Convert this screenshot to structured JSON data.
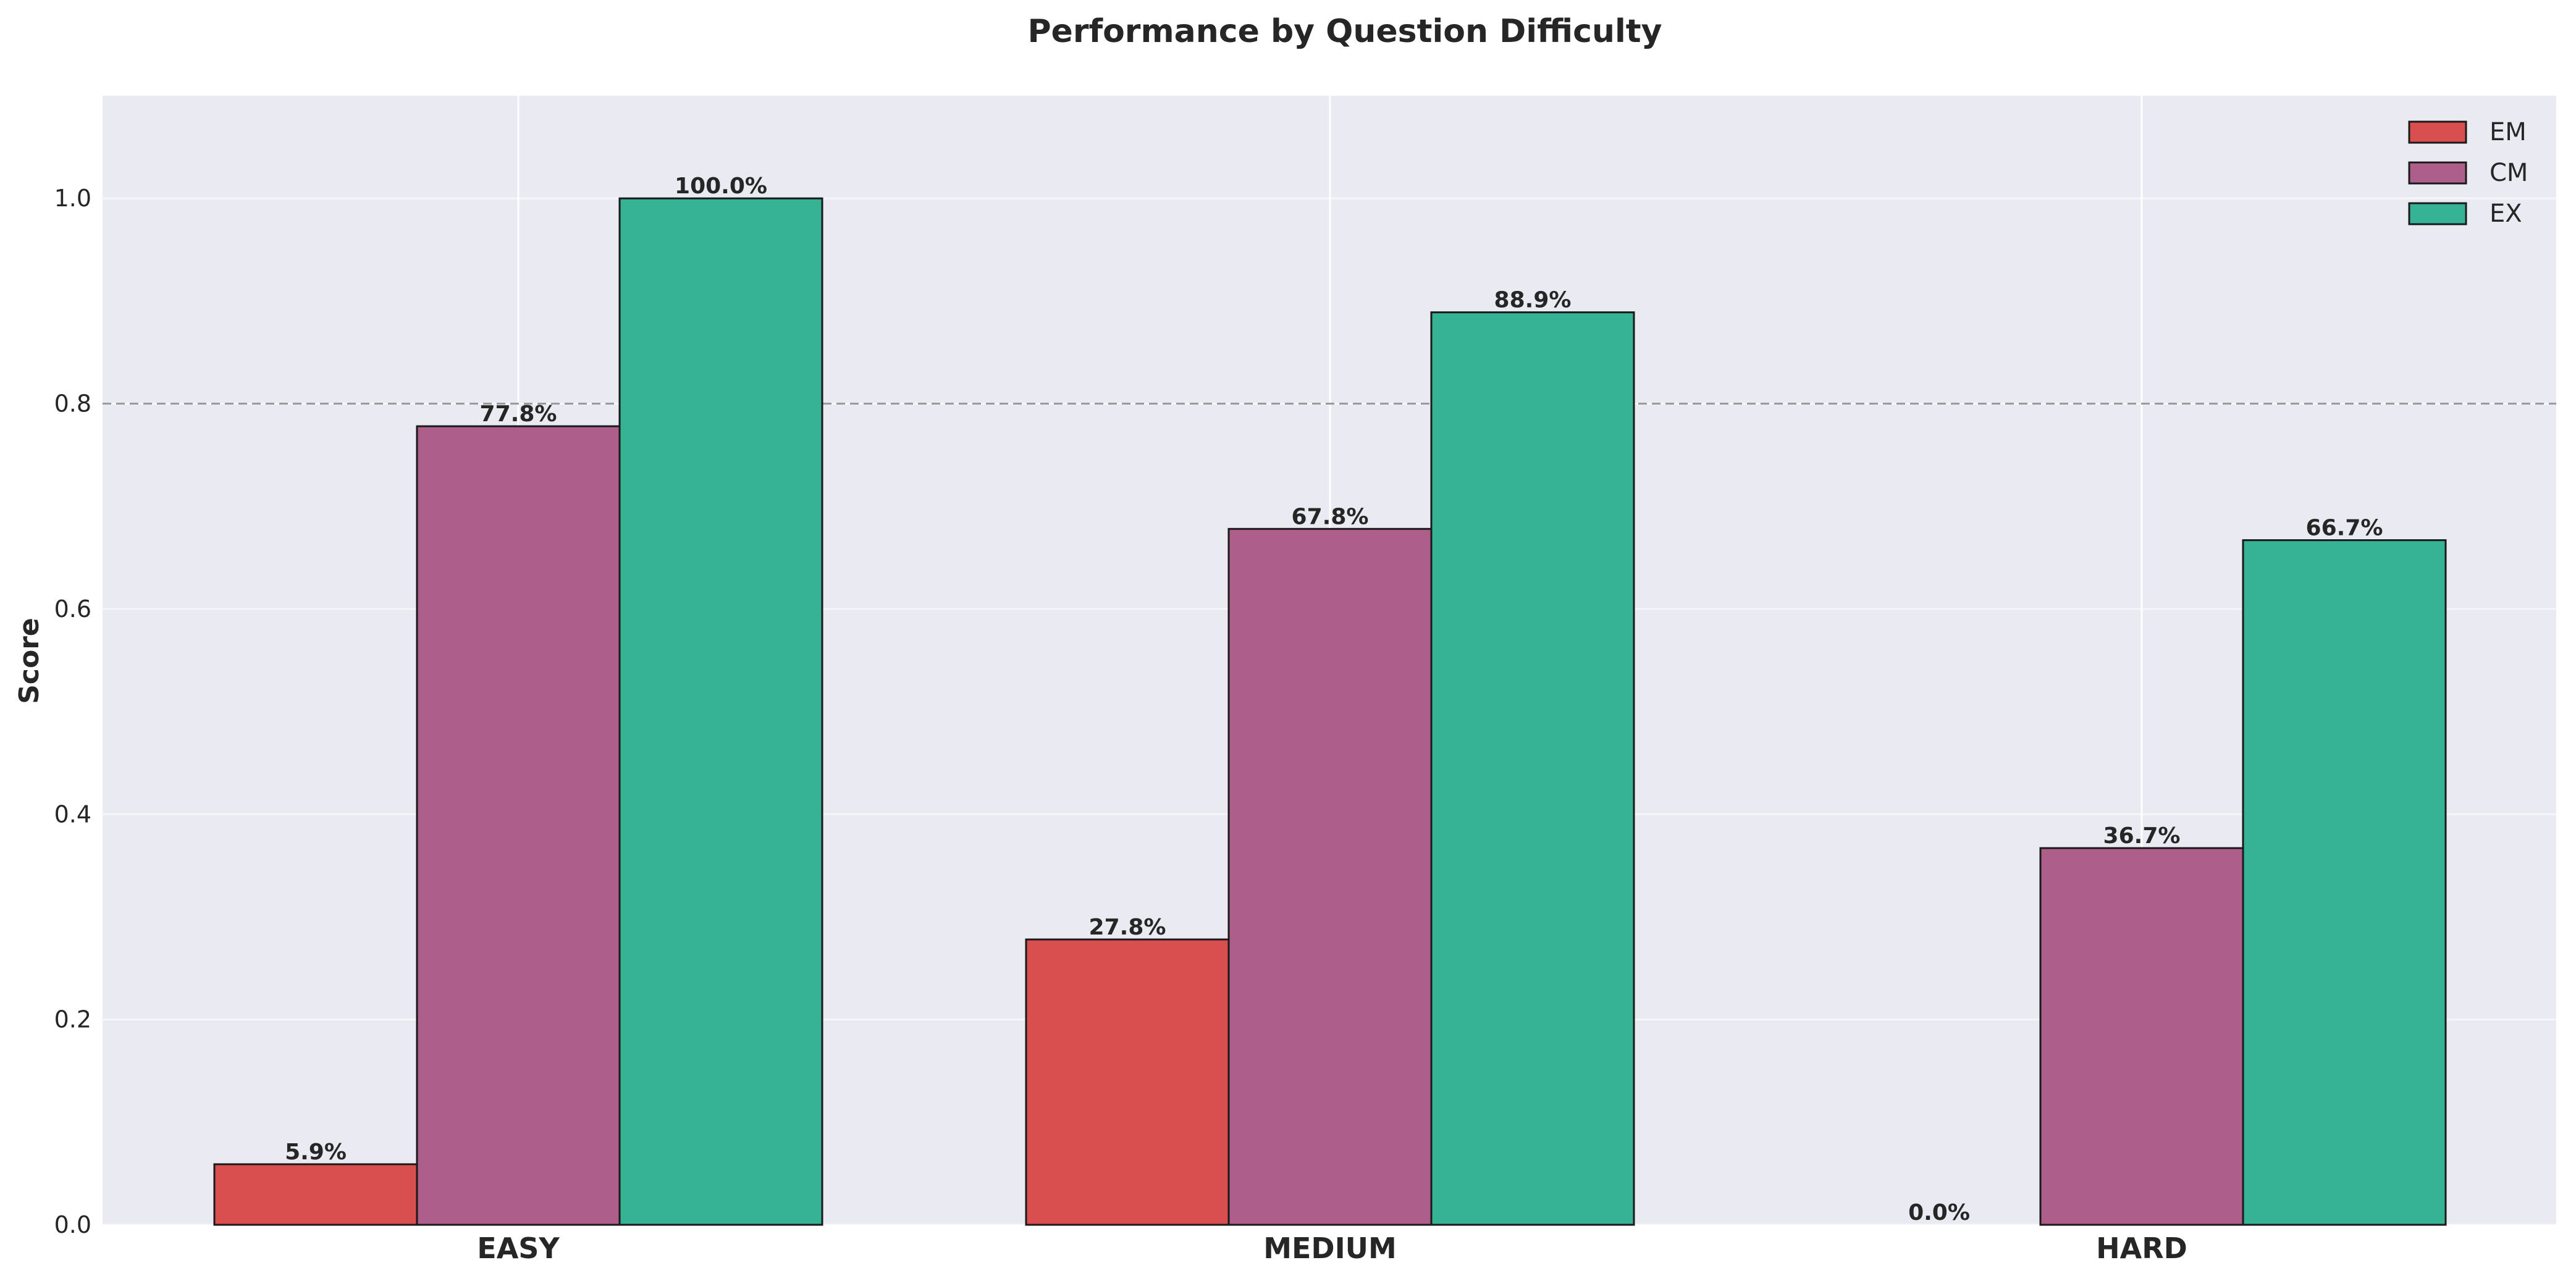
{
  "chart_data": {
    "type": "bar",
    "title": "Performance by Question Difficulty",
    "xlabel": "",
    "ylabel": "Score",
    "categories": [
      "EASY",
      "MEDIUM",
      "HARD"
    ],
    "series": [
      {
        "name": "EM",
        "values": [
          0.059,
          0.278,
          0.0
        ],
        "labels": [
          "5.9%",
          "27.8%",
          "0.0%"
        ],
        "color": "#d94f4f"
      },
      {
        "name": "CM",
        "values": [
          0.778,
          0.678,
          0.367
        ],
        "labels": [
          "77.8%",
          "67.8%",
          "36.7%"
        ],
        "color": "#ad5e8a"
      },
      {
        "name": "EX",
        "values": [
          1.0,
          0.889,
          0.667
        ],
        "labels": [
          "100.0%",
          "88.9%",
          "66.7%"
        ],
        "color": "#35b394"
      }
    ],
    "ylim": [
      0,
      1.1
    ],
    "yticks": [
      "0.0",
      "0.2",
      "0.4",
      "0.6",
      "0.8",
      "1.0"
    ],
    "reference_line": 0.8,
    "grid": true,
    "legend_position": "top-right",
    "background_color": "#eaeaf2",
    "bar_edge_color": "#1a1a1a"
  }
}
